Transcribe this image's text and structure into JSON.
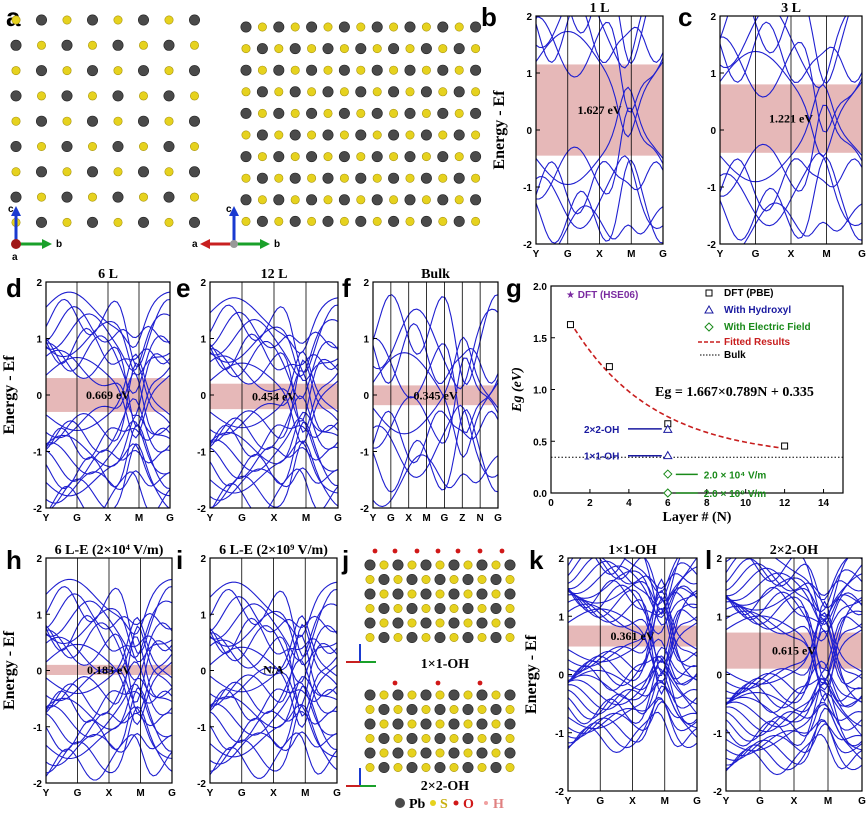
{
  "panel_letters": {
    "a": "a",
    "b": "b",
    "c": "c",
    "d": "d",
    "e": "e",
    "f": "f",
    "g": "g",
    "h": "h",
    "i": "i",
    "j": "j",
    "k": "k",
    "l": "l"
  },
  "band_panels": [
    {
      "id": "b",
      "title": "1 L",
      "gap": "1.627 eV",
      "gap_range": [
        -0.45,
        1.15
      ],
      "klabels": [
        "Y",
        "G",
        "X",
        "M",
        "G"
      ],
      "yticks": [
        "2",
        "1",
        "0",
        "-1",
        "-2"
      ],
      "ylabel": "Energy - Ef"
    },
    {
      "id": "c",
      "title": "3 L",
      "gap": "1.221 eV",
      "gap_range": [
        -0.4,
        0.8
      ],
      "klabels": [
        "Y",
        "G",
        "X",
        "M",
        "G"
      ],
      "yticks": [
        "2",
        "1",
        "0",
        "-1",
        "-2"
      ]
    },
    {
      "id": "d",
      "title": "6 L",
      "gap": "0.669 eV",
      "gap_range": [
        -0.3,
        0.3
      ],
      "klabels": [
        "Y",
        "G",
        "X",
        "M",
        "G"
      ],
      "yticks": [
        "2",
        "1",
        "0",
        "-1",
        "-2"
      ],
      "ylabel": "Energy - Ef"
    },
    {
      "id": "e",
      "title": "12 L",
      "gap": "0.454 eV",
      "gap_range": [
        -0.25,
        0.2
      ],
      "klabels": [
        "Y",
        "G",
        "X",
        "M",
        "G"
      ],
      "yticks": [
        "2",
        "1",
        "0",
        "-1",
        "-2"
      ]
    },
    {
      "id": "f",
      "title": "Bulk",
      "gap": "0.345 eV",
      "gap_range": [
        -0.18,
        0.17
      ],
      "klabels": [
        "Y",
        "G",
        "X",
        "M",
        "G",
        "Z",
        "N",
        "G"
      ],
      "yticks": [
        "2",
        "1",
        "0",
        "-1",
        "-2"
      ]
    },
    {
      "id": "h",
      "title": "6 L-E (2×10⁴ V/m)",
      "gap": "0.183 eV",
      "gap_range": [
        -0.08,
        0.1
      ],
      "klabels": [
        "Y",
        "G",
        "X",
        "M",
        "G"
      ],
      "yticks": [
        "2",
        "1",
        "0",
        "-1",
        "-2"
      ],
      "ylabel": "Energy - Ef"
    },
    {
      "id": "i",
      "title": "6 L-E (2×10⁹ V/m)",
      "gap": "N/A",
      "gap_range": null,
      "klabels": [
        "Y",
        "G",
        "X",
        "M",
        "G"
      ],
      "yticks": [
        "2",
        "1",
        "0",
        "-1",
        "-2"
      ]
    },
    {
      "id": "k",
      "title": "1×1-OH",
      "gap": "0.361 eV",
      "gap_range": [
        0.48,
        0.84
      ],
      "klabels": [
        "Y",
        "G",
        "X",
        "M",
        "G"
      ],
      "yticks": [
        "2",
        "1",
        "0",
        "-1",
        "-2"
      ],
      "ylabel": "Energy - Ef"
    },
    {
      "id": "l",
      "title": "2×2-OH",
      "gap": "0.615 eV",
      "gap_range": [
        0.1,
        0.72
      ],
      "klabels": [
        "Y",
        "G",
        "X",
        "M",
        "G"
      ],
      "yticks": [
        "2",
        "1",
        "0",
        "-1",
        "-2"
      ]
    }
  ],
  "chart_data": {
    "type": "scatter",
    "xlabel": "Layer # (N)",
    "ylabel": "Eg (eV)",
    "xlim": [
      0,
      15
    ],
    "ylim": [
      0,
      2.0
    ],
    "xticks": [
      "0",
      "2",
      "4",
      "6",
      "8",
      "10",
      "12",
      "14"
    ],
    "yticks": [
      "0.0",
      "0.5",
      "1.0",
      "1.5",
      "2.0"
    ],
    "series": [
      {
        "name": "DFT (PBE)",
        "x": [
          1,
          3,
          6,
          12
        ],
        "y": [
          1.627,
          1.221,
          0.669,
          0.454
        ],
        "marker": "square",
        "color": "#000000"
      },
      {
        "name": "With Hydroxyl",
        "x": [
          6,
          6
        ],
        "y": [
          0.615,
          0.361
        ],
        "marker": "triangle",
        "color": "#1a1aa0"
      },
      {
        "name": "With  Electric Field",
        "x": [
          6,
          6
        ],
        "y": [
          0.183,
          0.0
        ],
        "marker": "diamond",
        "color": "#1a8a1a"
      }
    ],
    "fit": {
      "name": "Fitted Results",
      "a": 1.667,
      "b": 0.789,
      "c": 0.335,
      "color": "#c81e1e"
    },
    "bulk": {
      "name": "Bulk",
      "value": 0.345
    },
    "hse_label": "DFT (HSE06)",
    "formula": "Eg = 1.667×0.789N + 0.335",
    "annotations": {
      "oh22": "2×2-OH",
      "oh11": "1×1-OH",
      "field1": "2.0 × 10⁴ V/m",
      "field2": "2.0 × 10⁹ V/m"
    }
  },
  "structure": {
    "j_label1": "1×1-OH",
    "j_label2": "2×2-OH",
    "legend_pb": "Pb",
    "legend_s": "S",
    "legend_o": "O",
    "legend_h": "H",
    "axis_a": "a",
    "axis_b": "b",
    "axis_c": "c"
  },
  "colors": {
    "band": "#1f1fd0",
    "gap": "#e6b8b8",
    "pb": "#4a4a4a",
    "s": "#e6d21e",
    "o": "#d01818",
    "h": "#f0a0a0"
  }
}
